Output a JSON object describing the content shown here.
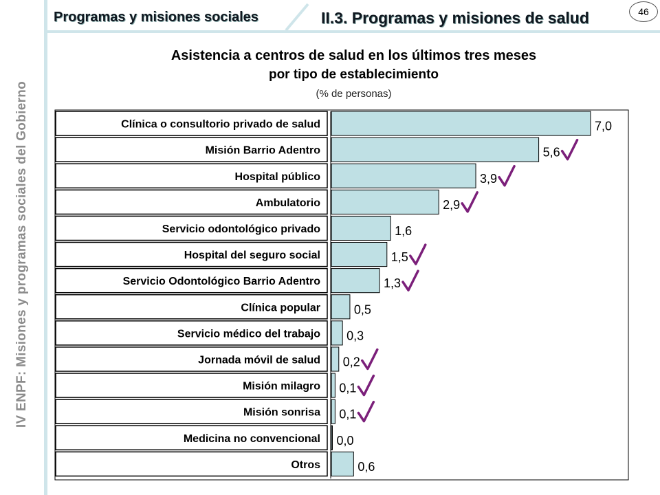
{
  "sidebar": {
    "text": "IV ENPF:  Misiones y programas sociales del Gobierno"
  },
  "header": {
    "section_left": "Programas y misiones sociales",
    "section_right": "II.3. Programas y misiones de salud",
    "page_number": "46"
  },
  "chart_data": {
    "type": "bar",
    "orientation": "horizontal",
    "title": "Asistencia a centros de salud en los últimos tres meses",
    "title_line2": "por tipo de establecimiento",
    "subtitle": "(% de personas)",
    "categories": [
      "Clínica o consultorio privado de salud",
      "Misión Barrio Adentro",
      "Hospital público",
      "Ambulatorio",
      "Servicio odontológico privado",
      "Hospital del seguro social",
      "Servicio Odontológico Barrio Adentro",
      "Clínica popular",
      "Servicio médico del trabajo",
      "Jornada móvil de salud",
      "Misión milagro",
      "Misión sonrisa",
      "Medicina no convencional",
      "Otros"
    ],
    "values": [
      7.0,
      5.6,
      3.9,
      2.9,
      1.6,
      1.5,
      1.3,
      0.5,
      0.3,
      0.2,
      0.1,
      0.1,
      0.0,
      0.6
    ],
    "value_labels": [
      "7,0",
      "5,6",
      "3,9",
      "2,9",
      "1,6",
      "1,5",
      "1,3",
      "0,5",
      "0,3",
      "0,2",
      "0,1",
      "0,1",
      "0,0",
      "0,6"
    ],
    "checkmarks": [
      false,
      true,
      true,
      true,
      false,
      true,
      true,
      false,
      false,
      true,
      true,
      true,
      false,
      false
    ],
    "xlim": [
      0,
      7.0
    ],
    "bar_color": "#bfe0e4",
    "check_color": "#7b1f7a"
  }
}
